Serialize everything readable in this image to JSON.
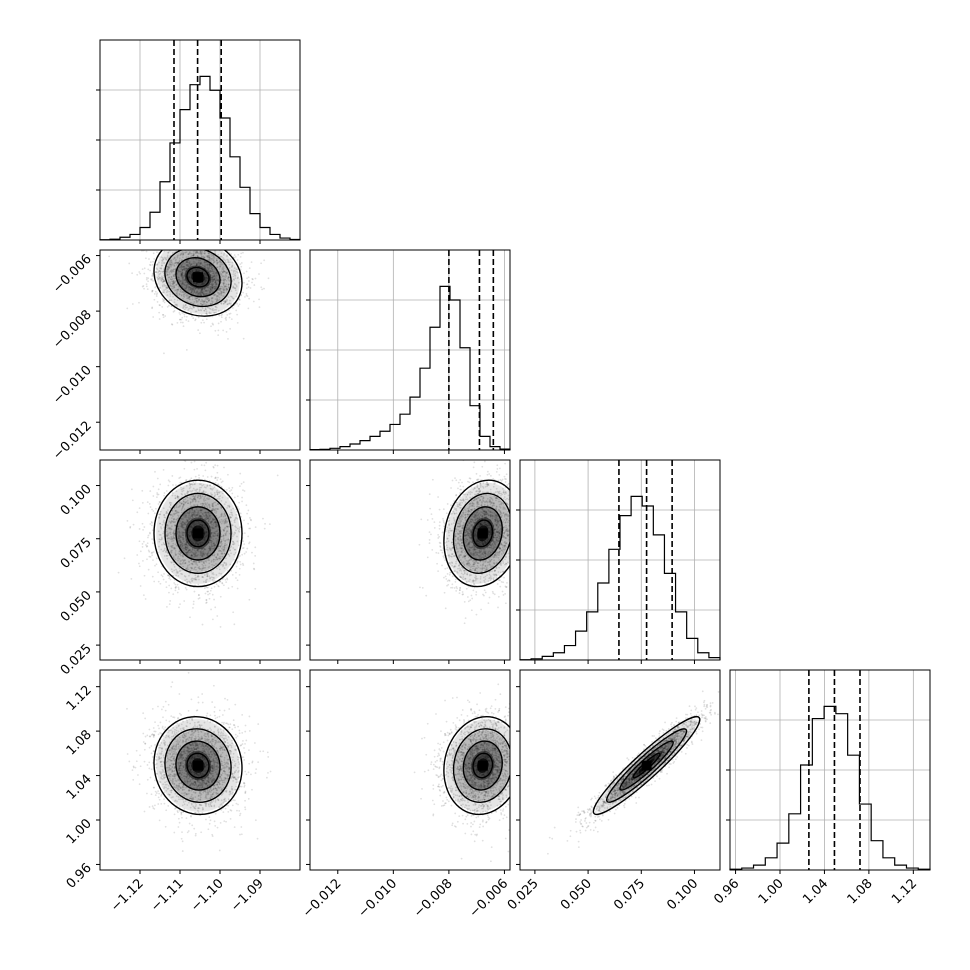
{
  "chart_data": {
    "type": "corner",
    "parameters": [
      {
        "range": [
          -1.13,
          -1.08
        ],
        "ticks": [
          -1.12,
          -1.11,
          -1.1,
          -1.09
        ],
        "tick_labels": [
          "−1.12",
          "−1.11",
          "−1.10",
          "−1.09"
        ],
        "mean": -1.1055,
        "sd": 0.0055,
        "quantiles": [
          -1.1115,
          -1.1056,
          -1.0997
        ]
      },
      {
        "range": [
          -0.013,
          -0.0058
        ],
        "ticks": [
          -0.012,
          -0.01,
          -0.008,
          -0.006
        ],
        "tick_labels": [
          "−0.012",
          "−0.010",
          "−0.008",
          "−0.006"
        ],
        "mean": -0.00678,
        "sd": 0.0007,
        "quantiles": [
          -0.008,
          -0.0069,
          -0.0064
        ]
      },
      {
        "range": [
          0.018,
          0.112
        ],
        "ticks": [
          0.025,
          0.05,
          0.075,
          0.1
        ],
        "tick_labels": [
          "0.025",
          "0.050",
          "0.075",
          "0.100"
        ],
        "mean": 0.0775,
        "sd": 0.0125,
        "quantiles": [
          0.0645,
          0.0775,
          0.0895
        ]
      },
      {
        "range": [
          0.955,
          1.135
        ],
        "ticks": [
          0.96,
          1.0,
          1.04,
          1.08,
          1.12
        ],
        "tick_labels": [
          "0.96",
          "1.00",
          "1.04",
          "1.08",
          "1.12"
        ],
        "mean": 1.049,
        "sd": 0.022,
        "quantiles": [
          1.026,
          1.049,
          1.072
        ]
      }
    ],
    "histograms": [
      {
        "edges_range": [
          -1.13,
          -1.08
        ],
        "counts": [
          0.1,
          0.3,
          1.0,
          2.0,
          4.5,
          10.0,
          21.0,
          35.0,
          47.0,
          56.0,
          59.0,
          54.0,
          44.0,
          30.0,
          19.0,
          9.5,
          4.5,
          2.0,
          0.7,
          0.2
        ]
      },
      {
        "edges_range": [
          -0.013,
          -0.0058
        ],
        "counts": [
          0.2,
          0.4,
          1.0,
          2.0,
          3.5,
          5.5,
          8.0,
          11.0,
          15.0,
          21.0,
          31.0,
          48.0,
          72.0,
          96.0,
          88.0,
          60.0,
          26.0,
          8.0,
          2.0,
          0.5
        ]
      },
      {
        "edges_range": [
          0.018,
          0.112
        ],
        "counts": [
          0.1,
          0.5,
          1.5,
          3.0,
          6.0,
          12.0,
          20.0,
          32.0,
          46.0,
          60.0,
          68.0,
          64.0,
          52.0,
          36.0,
          20.0,
          9.0,
          3.0,
          1.0
        ]
      },
      {
        "edges_range": [
          0.955,
          1.135
        ],
        "counts": [
          0.3,
          0.8,
          2.0,
          5.0,
          11.0,
          23.0,
          43.0,
          62.0,
          67.0,
          64.0,
          47.0,
          27.0,
          12.0,
          5.0,
          2.0,
          0.8,
          0.3
        ]
      }
    ],
    "pairs": [
      {
        "x": 0,
        "y": 1,
        "correlation": -0.15
      },
      {
        "x": 0,
        "y": 2,
        "correlation": 0.0
      },
      {
        "x": 0,
        "y": 3,
        "correlation": -0.05
      },
      {
        "x": 1,
        "y": 2,
        "correlation": 0.15
      },
      {
        "x": 1,
        "y": 3,
        "correlation": 0.1
      },
      {
        "x": 2,
        "y": 3,
        "correlation": 0.94
      }
    ],
    "contour_levels_sigma": [
      0.5,
      1.0,
      1.5,
      2.0
    ],
    "grid": true
  }
}
